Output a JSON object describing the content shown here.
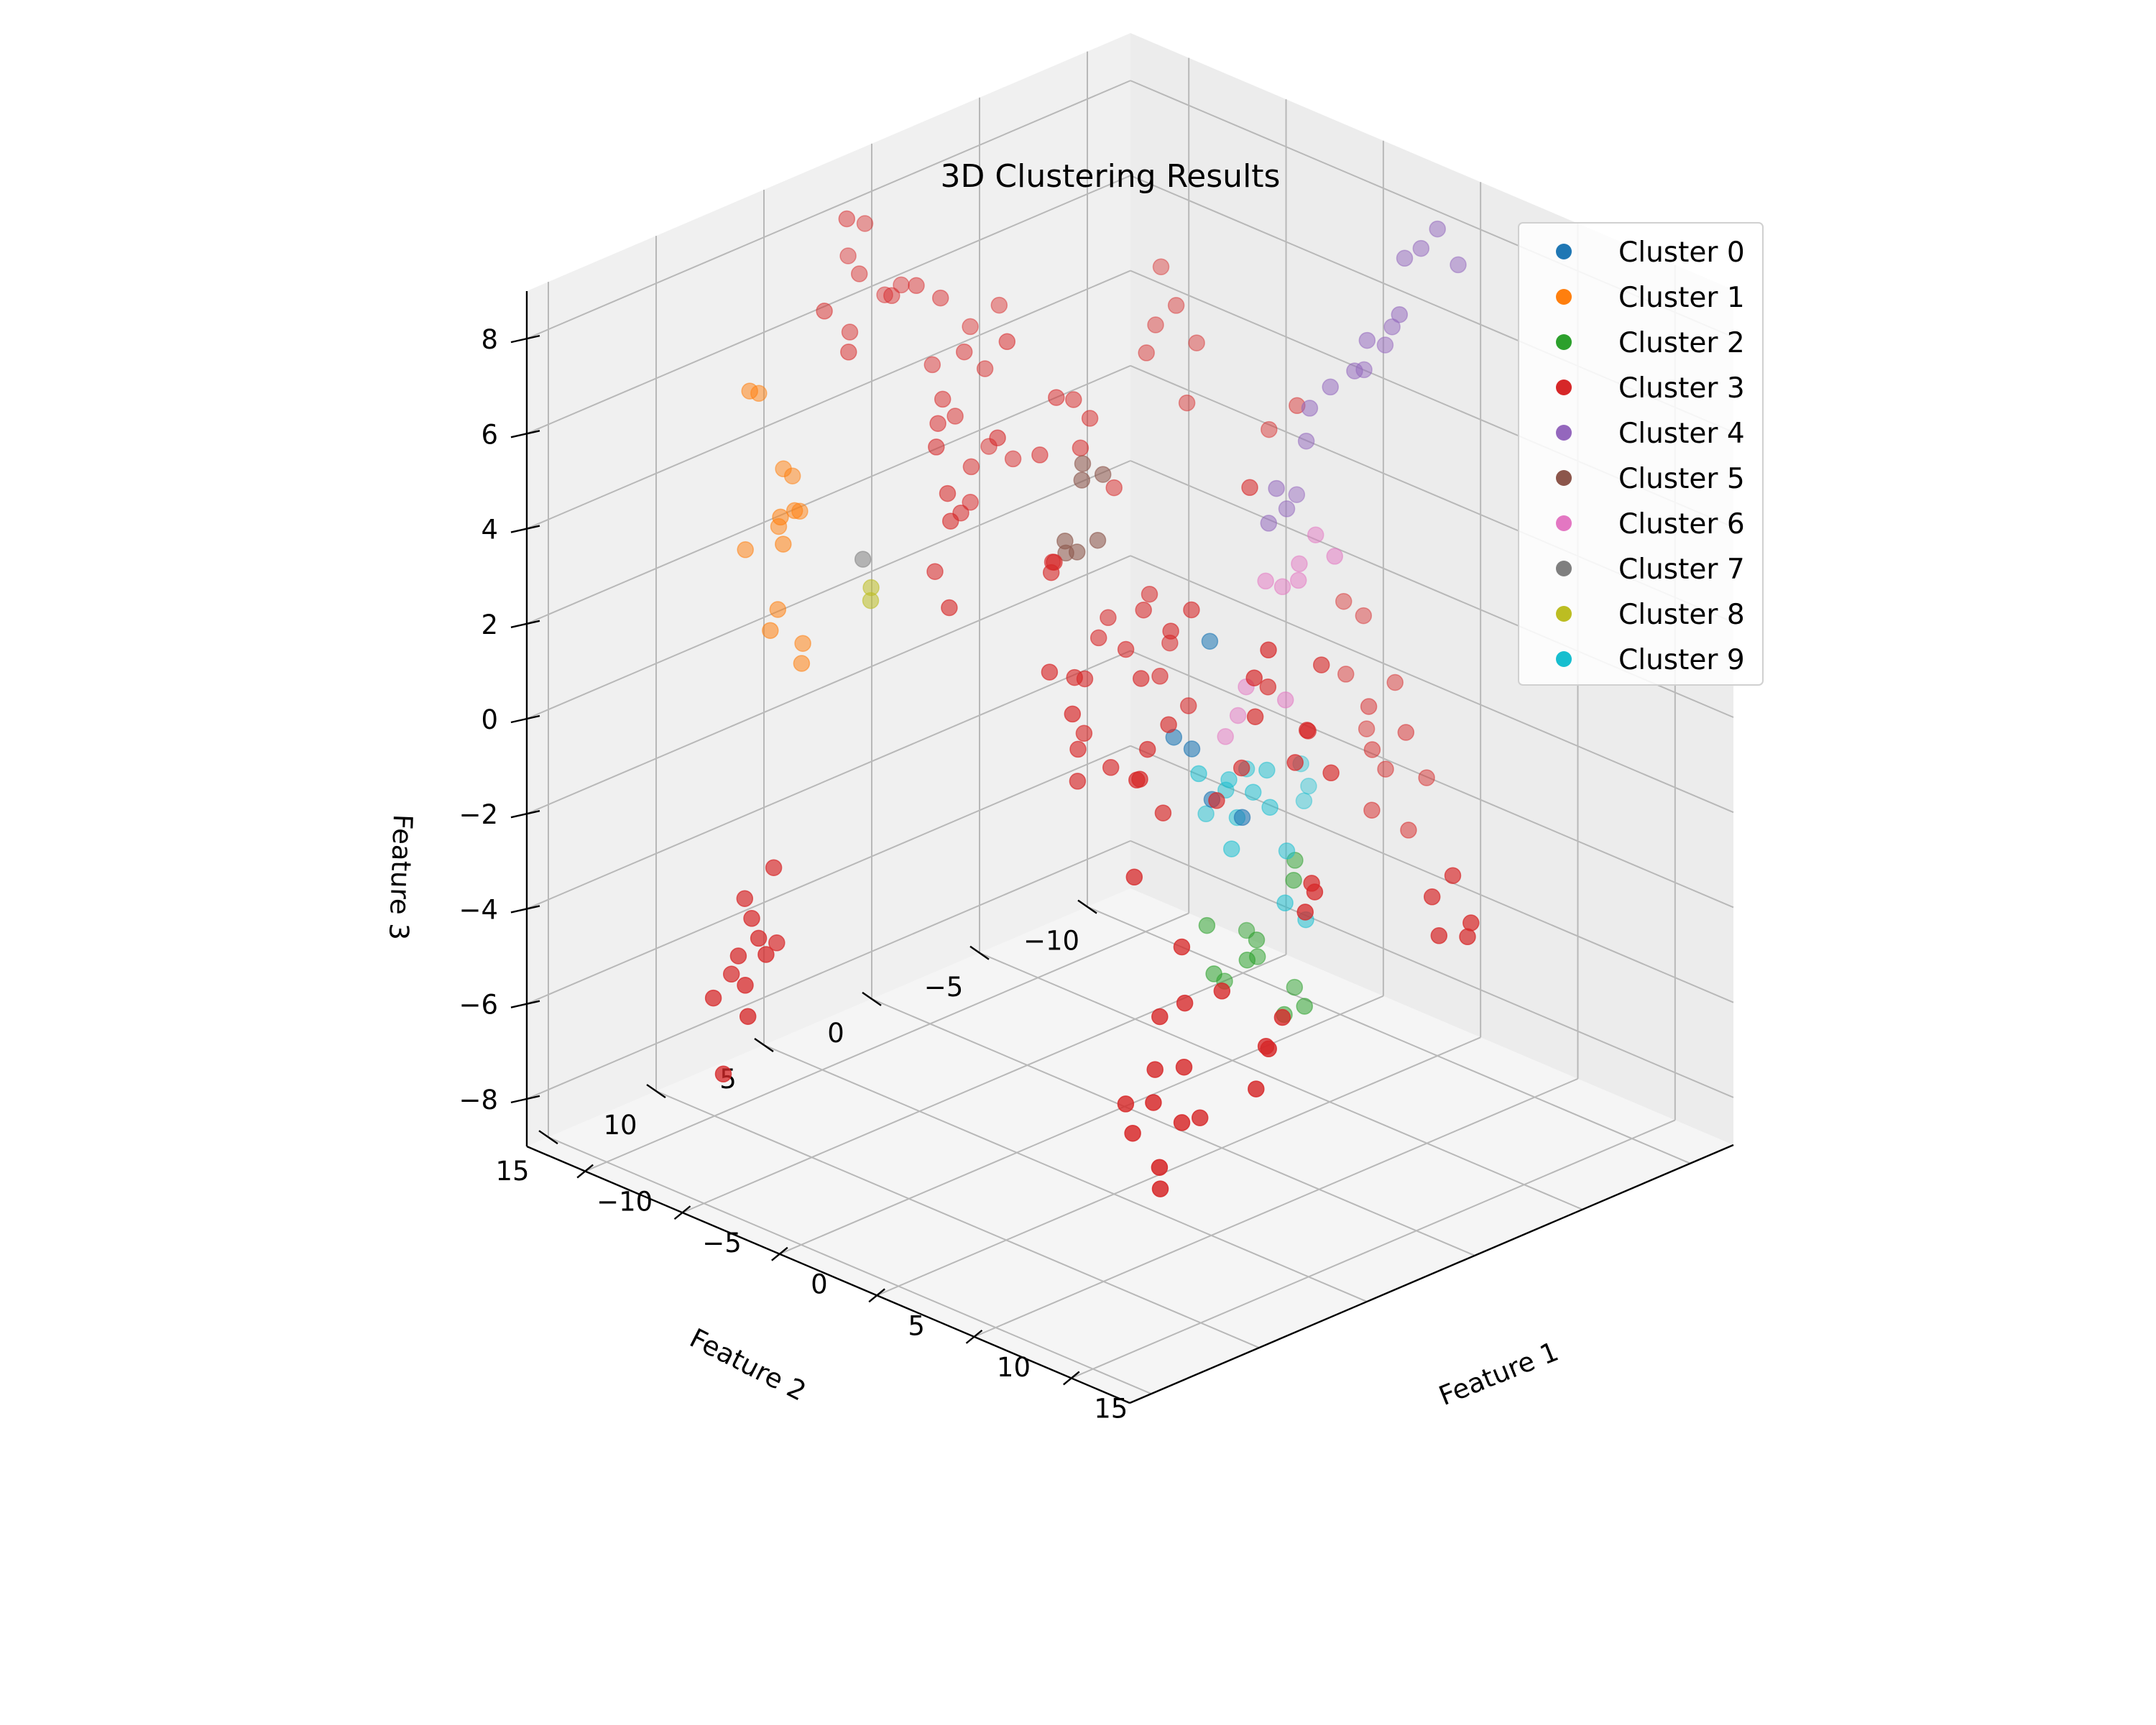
{
  "chart_data": {
    "type": "scatter",
    "projection": "3d",
    "title": "3D Clustering Results",
    "xlabel": "Feature 1",
    "ylabel": "Feature 2",
    "zlabel": "Feature 3",
    "xlim": [
      -13,
      18
    ],
    "ylim": [
      -12,
      16
    ],
    "zlim": [
      -9,
      9
    ],
    "xticks": [
      -10,
      -5,
      0,
      5,
      10,
      15
    ],
    "yticks": [
      -10,
      -5,
      0,
      5,
      10,
      15
    ],
    "zticks": [
      -8,
      -6,
      -4,
      -2,
      0,
      2,
      4,
      6,
      8
    ],
    "xticklabels": [
      "−10",
      "−5",
      "0",
      "5",
      "10",
      "15"
    ],
    "yticklabels": [
      "−10",
      "−5",
      "0",
      "5",
      "10",
      "15"
    ],
    "zticklabels": [
      "−8",
      "−6",
      "−4",
      "−2",
      "0",
      "2",
      "4",
      "6",
      "8"
    ],
    "grid": true,
    "legend_position": "top-right",
    "series": [
      {
        "name": "Cluster 0",
        "color": "#1f77b4",
        "points": [
          [
            0.5,
            -3.5,
            0.2
          ],
          [
            0.8,
            -2.4,
            -1.8
          ],
          [
            0.2,
            -2.1,
            -1.6
          ],
          [
            1.5,
            -2.7,
            -2.8
          ],
          [
            2.5,
            -3.2,
            -3.1
          ]
        ]
      },
      {
        "name": "Cluster 1",
        "color": "#ff7f0e",
        "points": [
          [
            -12.0,
            5.0,
            3.3
          ],
          [
            -12.6,
            5.6,
            4.9
          ],
          [
            -12.4,
            6.2,
            5.1
          ],
          [
            -11.6,
            4.6,
            2.4
          ],
          [
            -11.2,
            5.2,
            2.6
          ],
          [
            -10.6,
            6.4,
            2.8
          ],
          [
            -10.9,
            6.0,
            2.1
          ],
          [
            -11.4,
            5.8,
            0.6
          ],
          [
            -10.9,
            6.6,
            0.4
          ],
          [
            -12.2,
            4.4,
            3.0
          ],
          [
            -11.8,
            5.4,
            2.2
          ],
          [
            -10.4,
            5.6,
            -0.4
          ],
          [
            -11.0,
            5.0,
            -0.2
          ],
          [
            -12.4,
            6.4,
            1.8
          ]
        ]
      },
      {
        "name": "Cluster 2",
        "color": "#2ca02c",
        "points": [
          [
            1.0,
            -7.0,
            -5.0
          ],
          [
            1.6,
            -6.4,
            -5.2
          ],
          [
            0.8,
            -5.4,
            -6.4
          ],
          [
            1.2,
            -4.6,
            -6.6
          ],
          [
            0.4,
            -5.8,
            -6.9
          ],
          [
            -0.6,
            -6.2,
            -6.6
          ],
          [
            -0.2,
            -4.0,
            -6.0
          ],
          [
            0.6,
            -3.6,
            -6.8
          ],
          [
            -0.4,
            -5.0,
            -7.4
          ],
          [
            1.2,
            -6.8,
            -7.6
          ],
          [
            2.0,
            -5.6,
            -7.8
          ],
          [
            2.6,
            -6.0,
            -7.6
          ]
        ]
      },
      {
        "name": "Cluster 3",
        "color": "#d62728",
        "points": [
          [
            -4.0,
            -6.0,
            6.0
          ],
          [
            -4.5,
            -5.5,
            5.6
          ],
          [
            -3.5,
            -6.5,
            5.2
          ],
          [
            -5.0,
            -6.2,
            6.6
          ],
          [
            -4.2,
            -4.8,
            5.2
          ],
          [
            -3.0,
            -5.6,
            4.2
          ],
          [
            -1.0,
            -7.6,
            3.6
          ],
          [
            0.0,
            -8.0,
            4.2
          ],
          [
            2.0,
            -4.0,
            3.6
          ],
          [
            5.0,
            -4.0,
            -1.0
          ],
          [
            5.5,
            -3.5,
            -0.8
          ],
          [
            6.0,
            -2.5,
            -1.2
          ],
          [
            4.5,
            -2.0,
            -0.4
          ],
          [
            3.8,
            -2.0,
            -1.6
          ],
          [
            5.0,
            -1.5,
            0.6
          ],
          [
            4.8,
            -4.8,
            0.2
          ],
          [
            6.4,
            -3.8,
            -1.6
          ],
          [
            3.6,
            -3.4,
            -0.2
          ],
          [
            5.4,
            -1.8,
            1.2
          ],
          [
            8.0,
            -1.6,
            -3.4
          ],
          [
            8.4,
            -0.8,
            -3.6
          ],
          [
            7.4,
            -2.0,
            -3.4
          ],
          [
            9.0,
            0.8,
            -5.4
          ],
          [
            9.4,
            1.8,
            -5.8
          ],
          [
            8.6,
            1.2,
            -6.0
          ],
          [
            9.2,
            2.2,
            -6.6
          ],
          [
            -4.0,
            -2.0,
            4.4
          ],
          [
            -3.6,
            -1.2,
            4.0
          ],
          [
            -4.4,
            -1.6,
            4.8
          ],
          [
            -4.4,
            -0.8,
            5.0
          ],
          [
            -3.2,
            -2.4,
            3.0
          ],
          [
            -4.8,
            -0.4,
            3.8
          ],
          [
            -2.4,
            -1.4,
            0.6
          ],
          [
            -1.6,
            -2.6,
            1.0
          ],
          [
            -0.8,
            -1.6,
            1.0
          ],
          [
            -2.0,
            -0.6,
            0.4
          ],
          [
            -1.6,
            0.4,
            -0.2
          ],
          [
            -0.6,
            -0.6,
            0.4
          ],
          [
            0.4,
            -0.4,
            0.0
          ],
          [
            -1.2,
            0.8,
            -1.2
          ],
          [
            0.4,
            1.0,
            -1.6
          ],
          [
            1.4,
            0.2,
            -1.2
          ],
          [
            -1.0,
            -3.0,
            0.0
          ],
          [
            -0.4,
            -2.0,
            -0.4
          ],
          [
            1.6,
            -0.6,
            -0.8
          ],
          [
            0.4,
            -2.6,
            -1.0
          ],
          [
            -0.8,
            1.6,
            0.2
          ],
          [
            -2.6,
            1.0,
            2.2
          ],
          [
            -2.0,
            1.6,
            2.2
          ],
          [
            -1.4,
            2.0,
            2.6
          ],
          [
            -0.4,
            1.8,
            -1.2
          ],
          [
            -1.2,
            2.4,
            0.4
          ],
          [
            0.2,
            2.6,
            -0.2
          ],
          [
            -0.2,
            2.0,
            -1.8
          ],
          [
            0.6,
            -1.6,
            0.8
          ],
          [
            1.0,
            -2.2,
            1.2
          ],
          [
            2.4,
            1.6,
            -1.4
          ],
          [
            3.0,
            2.0,
            -1.2
          ],
          [
            3.4,
            -1.2,
            -2.2
          ],
          [
            2.2,
            0.2,
            -2.4
          ],
          [
            3.6,
            2.8,
            -3.0
          ],
          [
            -6.4,
            -0.6,
            3.4
          ],
          [
            -7.2,
            -0.2,
            3.6
          ],
          [
            -7.0,
            0.8,
            3.4
          ],
          [
            -6.6,
            1.2,
            2.8
          ],
          [
            -7.6,
            1.0,
            4.4
          ],
          [
            -7.6,
            1.8,
            4.4
          ],
          [
            -6.2,
            2.0,
            2.8
          ],
          [
            -6.8,
            2.6,
            4.2
          ],
          [
            -8.0,
            -1.4,
            6.2
          ],
          [
            -8.8,
            0.6,
            6.6
          ],
          [
            -8.6,
            -0.6,
            5.8
          ],
          [
            -7.4,
            -0.2,
            5.2
          ],
          [
            -7.8,
            0.4,
            5.6
          ],
          [
            -7.8,
            1.4,
            4.8
          ],
          [
            -6.2,
            3.2,
            1.8
          ],
          [
            -6.0,
            2.8,
            3.4
          ],
          [
            -5.4,
            3.2,
            3.0
          ],
          [
            -4.8,
            3.8,
            1.4
          ],
          [
            -5.6,
            0.4,
            6.2
          ],
          [
            -5.2,
            1.2,
            4.4
          ],
          [
            -11.0,
            1.2,
            6.4
          ],
          [
            -12.0,
            2.0,
            7.2
          ],
          [
            -11.4,
            2.6,
            8.2
          ],
          [
            -10.6,
            0.8,
            6.6
          ],
          [
            -11.8,
            1.4,
            7.8
          ],
          [
            -11.2,
            2.2,
            7.0
          ],
          [
            -10.2,
            1.6,
            6.6
          ],
          [
            -10.8,
            3.0,
            6.0
          ],
          [
            -9.6,
            1.0,
            6.8
          ],
          [
            -9.0,
            0.8,
            5.2
          ],
          [
            -11.0,
            4.0,
            6.6
          ],
          [
            -10.2,
            3.6,
            5.8
          ],
          [
            1.2,
            -10.0,
            -0.4
          ],
          [
            0.4,
            -9.8,
            -0.2
          ],
          [
            1.4,
            -9.0,
            -1.4
          ],
          [
            2.8,
            -8.8,
            -1.8
          ],
          [
            1.8,
            -9.6,
            -2.6
          ],
          [
            3.2,
            -8.6,
            -2.6
          ],
          [
            2.6,
            -10.2,
            -1.6
          ],
          [
            3.6,
            -9.8,
            -2.4
          ],
          [
            3.0,
            -9.4,
            -3.2
          ],
          [
            4.0,
            -10.4,
            -3.4
          ],
          [
            3.4,
            -8.4,
            -3.8
          ],
          [
            4.4,
            -9.2,
            -4.2
          ],
          [
            10.0,
            -6.2,
            -3.6
          ],
          [
            9.6,
            -5.6,
            -4.0
          ],
          [
            10.4,
            -5.2,
            -4.6
          ],
          [
            11.2,
            -5.8,
            -4.6
          ],
          [
            11.6,
            -5.6,
            -4.2
          ],
          [
            5.6,
            2.4,
            -4.2
          ],
          [
            6.2,
            2.8,
            -5.2
          ],
          [
            5.8,
            3.6,
            -5.4
          ],
          [
            6.6,
            3.2,
            -6.4
          ],
          [
            7.0,
            1.8,
            -5.0
          ],
          [
            6.0,
            4.0,
            -6.4
          ],
          [
            6.8,
            4.8,
            -6.8
          ],
          [
            7.6,
            4.2,
            -7.2
          ],
          [
            6.4,
            5.4,
            -7.4
          ],
          [
            7.2,
            3.0,
            -7.4
          ],
          [
            5.6,
            5.0,
            -7.0
          ],
          [
            8.0,
            5.6,
            -7.8
          ],
          [
            7.6,
            5.2,
            -8.4
          ],
          [
            -7.4,
            9.6,
            -3.4
          ],
          [
            -8.0,
            10.4,
            -4.0
          ],
          [
            -7.2,
            10.8,
            -4.2
          ],
          [
            -7.8,
            11.2,
            -5.4
          ],
          [
            -7.0,
            11.6,
            -4.8
          ],
          [
            -6.4,
            11.2,
            -4.4
          ],
          [
            -6.8,
            10.0,
            -4.8
          ],
          [
            -6.2,
            12.0,
            -5.2
          ],
          [
            -5.8,
            11.4,
            -4.6
          ],
          [
            -7.4,
            12.4,
            -5.6
          ],
          [
            -5.4,
            12.6,
            -5.6
          ],
          [
            -6.0,
            13.2,
            -6.8
          ]
        ]
      },
      {
        "name": "Cluster 4",
        "color": "#9467bd",
        "points": [
          [
            5.0,
            -10.0,
            8.4
          ],
          [
            4.6,
            -9.6,
            8.0
          ],
          [
            5.4,
            -10.6,
            7.6
          ],
          [
            4.2,
            -9.2,
            7.8
          ],
          [
            4.0,
            -8.8,
            6.4
          ],
          [
            3.6,
            -8.0,
            6.2
          ],
          [
            4.6,
            -8.6,
            6.8
          ],
          [
            3.0,
            -8.4,
            5.4
          ],
          [
            3.4,
            -7.6,
            5.6
          ],
          [
            2.6,
            -7.2,
            5.2
          ],
          [
            2.2,
            -6.6,
            4.8
          ],
          [
            3.2,
            -9.2,
            5.8
          ],
          [
            1.6,
            -5.6,
            3.2
          ],
          [
            1.8,
            -6.8,
            4.0
          ],
          [
            1.2,
            -5.6,
            2.4
          ],
          [
            0.8,
            -6.8,
            2.4
          ],
          [
            0.2,
            -7.8,
            2.4
          ]
        ]
      },
      {
        "name": "Cluster 5",
        "color": "#8c564b",
        "points": [
          [
            -2.6,
            -0.4,
            4.0
          ],
          [
            -2.2,
            0.0,
            3.8
          ],
          [
            -2.0,
            -0.8,
            3.8
          ],
          [
            -2.4,
            0.6,
            2.6
          ],
          [
            -2.0,
            0.4,
            2.4
          ],
          [
            -1.6,
            -0.2,
            2.6
          ],
          [
            -2.8,
            0.2,
            2.2
          ]
        ]
      },
      {
        "name": "Cluster 6",
        "color": "#e377c2",
        "points": [
          [
            1.4,
            -7.6,
            1.8
          ],
          [
            1.0,
            -7.2,
            1.2
          ],
          [
            1.4,
            -6.8,
            1.0
          ],
          [
            0.8,
            -6.6,
            0.8
          ],
          [
            0.6,
            -6.0,
            1.0
          ],
          [
            -0.4,
            -6.0,
            -1.4
          ],
          [
            -0.6,
            -5.8,
            -2.0
          ],
          [
            -0.8,
            -5.4,
            -2.4
          ],
          [
            1.4,
            -6.2,
            -1.4
          ],
          [
            2.6,
            -7.4,
            1.6
          ]
        ]
      },
      {
        "name": "Cluster 7",
        "color": "#7f7f7f",
        "points": [
          [
            -8.8,
            4.2,
            1.8
          ]
        ]
      },
      {
        "name": "Cluster 8",
        "color": "#bcbd22",
        "points": [
          [
            -8.6,
            4.0,
            1.2
          ],
          [
            -8.4,
            4.2,
            1.0
          ]
        ]
      },
      {
        "name": "Cluster 9",
        "color": "#17becf",
        "points": [
          [
            -1.4,
            -9.8,
            -4.4
          ],
          [
            -1.2,
            -9.4,
            -4.6
          ],
          [
            -1.8,
            -9.8,
            -4.0
          ],
          [
            -0.6,
            -6.2,
            -3.2
          ],
          [
            0.0,
            -6.6,
            -3.2
          ],
          [
            -1.0,
            -5.6,
            -3.6
          ],
          [
            -0.2,
            -5.4,
            -4.0
          ],
          [
            0.4,
            -5.6,
            -3.4
          ],
          [
            0.6,
            -6.2,
            -3.8
          ],
          [
            -0.4,
            -5.2,
            -3.2
          ],
          [
            -1.8,
            -5.4,
            -4.2
          ],
          [
            -0.4,
            -3.8,
            -2.8
          ],
          [
            0.8,
            -6.8,
            -4.8
          ],
          [
            1.6,
            -6.0,
            -5.6
          ],
          [
            2.0,
            -6.6,
            -6.0
          ],
          [
            0.4,
            -4.6,
            -4.4
          ]
        ]
      }
    ]
  }
}
